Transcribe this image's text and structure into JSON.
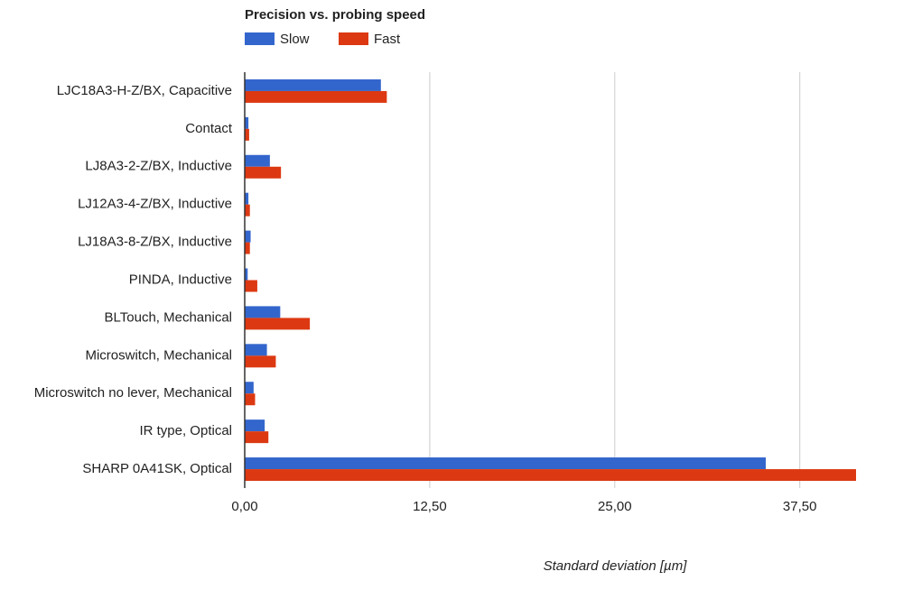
{
  "chart_data": {
    "type": "hbar",
    "title": "Precision vs. probing speed",
    "categories": [
      "LJC18A3-H-Z/BX, Capacitive",
      "Contact",
      "LJ8A3-2-Z/BX, Inductive",
      "LJ12A3-4-Z/BX, Inductive",
      "LJ18A3-8-Z/BX, Inductive",
      "PINDA, Inductive",
      "BLTouch, Mechanical",
      "Microswitch, Mechanical",
      "Microswitch no lever, Mechanical",
      "IR type, Optical",
      "SHARP 0A41SK, Optical"
    ],
    "series": [
      {
        "name": "Slow",
        "color": "#3366cc",
        "values": [
          9.2,
          0.25,
          1.7,
          0.25,
          0.4,
          0.2,
          2.4,
          1.5,
          0.6,
          1.35,
          35.2
        ]
      },
      {
        "name": "Fast",
        "color": "#dc3912",
        "values": [
          9.6,
          0.3,
          2.45,
          0.35,
          0.35,
          0.85,
          4.4,
          2.1,
          0.7,
          1.6,
          41.3
        ]
      }
    ],
    "xlim": [
      0,
      41.3
    ],
    "xticks": [
      {
        "value": 0,
        "label": "0,00"
      },
      {
        "value": 12.5,
        "label": "12,50"
      },
      {
        "value": 25,
        "label": "25,00"
      },
      {
        "value": 37.5,
        "label": "37,50"
      }
    ],
    "xlabel": "Standard deviation [µm]",
    "grid": true,
    "legend": "top"
  }
}
